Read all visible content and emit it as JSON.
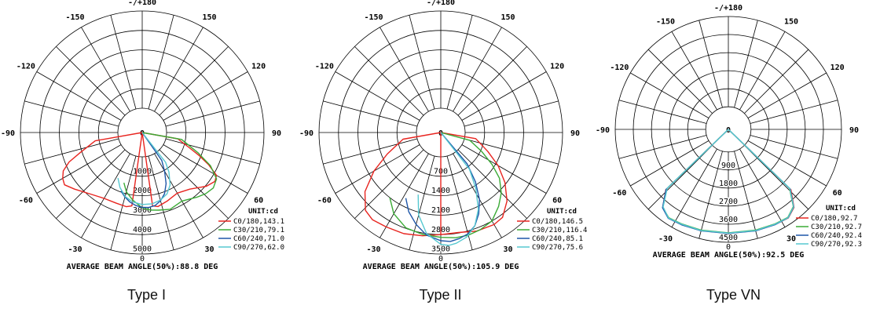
{
  "chart_data": [
    {
      "type": "polar-line",
      "caption": "Type I",
      "angle_labels": [
        {
          "angle": 180,
          "text": "-/+180"
        },
        {
          "angle": -150,
          "text": "-150"
        },
        {
          "angle": 150,
          "text": "150"
        },
        {
          "angle": -120,
          "text": "-120"
        },
        {
          "angle": 120,
          "text": "120"
        },
        {
          "angle": -90,
          "text": "-90"
        },
        {
          "angle": 90,
          "text": "90"
        },
        {
          "angle": -60,
          "text": "-60"
        },
        {
          "angle": 60,
          "text": "60"
        },
        {
          "angle": -30,
          "text": "-30"
        },
        {
          "angle": 30,
          "text": "30"
        },
        {
          "angle": 0,
          "text": "0"
        }
      ],
      "radial_ticks": [
        "0",
        "1000",
        "2000",
        "3000",
        "4000",
        "5000"
      ],
      "r_max": 5000,
      "inner_circle_fraction": 0.2,
      "unit_label": "UNIT:cd",
      "beam_angle_text": "AVERAGE BEAM ANGLE(50%):88.8 DEG",
      "series": [
        {
          "name": "C0/180,143.1",
          "color": "#e8241f",
          "points": [
            [
              0,
              0
            ],
            [
              -8,
              2560
            ],
            [
              -12,
              2650
            ],
            [
              -20,
              2620
            ],
            [
              -30,
              2660
            ],
            [
              -40,
              2880
            ],
            [
              -50,
              3280
            ],
            [
              -56,
              3560
            ],
            [
              -60,
              3460
            ],
            [
              -64,
              3260
            ],
            [
              -68,
              2800
            ],
            [
              -72,
              2100
            ],
            [
              -80,
              1200
            ],
            [
              -90,
              0
            ],
            [
              0,
              0
            ],
            [
              8,
              2560
            ],
            [
              12,
              2640
            ],
            [
              20,
              2500
            ],
            [
              30,
              2350
            ],
            [
              40,
              2550
            ],
            [
              50,
              3050
            ],
            [
              56,
              3250
            ],
            [
              60,
              3150
            ],
            [
              64,
              2550
            ],
            [
              68,
              1900
            ],
            [
              72,
              1300
            ],
            [
              80,
              600
            ],
            [
              90,
              0
            ]
          ]
        },
        {
          "name": "C30/210,79.1",
          "color": "#3aaa35",
          "points": [
            [
              -20,
              1500
            ],
            [
              -15,
              1900
            ],
            [
              -8,
              2260
            ],
            [
              0,
              2620
            ],
            [
              6,
              2760
            ],
            [
              12,
              2830
            ],
            [
              20,
              2950
            ],
            [
              30,
              2820
            ],
            [
              40,
              3100
            ],
            [
              46,
              3280
            ],
            [
              52,
              3380
            ],
            [
              58,
              3250
            ],
            [
              64,
              2650
            ],
            [
              70,
              1800
            ],
            [
              80,
              800
            ],
            [
              90,
              0
            ]
          ]
        },
        {
          "name": "C60/240,71.0",
          "color": "#1e56a8",
          "points": [
            [
              -20,
              1950
            ],
            [
              -15,
              2180
            ],
            [
              -10,
              2380
            ],
            [
              -5,
              2520
            ],
            [
              0,
              2600
            ],
            [
              5,
              2620
            ],
            [
              10,
              2560
            ],
            [
              15,
              2380
            ],
            [
              20,
              2100
            ],
            [
              25,
              1650
            ],
            [
              30,
              1050
            ],
            [
              35,
              500
            ],
            [
              40,
              0
            ]
          ]
        },
        {
          "name": "C90/270,62.0",
          "color": "#56c8d0",
          "points": [
            [
              -28,
              1400
            ],
            [
              -22,
              1800
            ],
            [
              -15,
              2150
            ],
            [
              -8,
              2350
            ],
            [
              0,
              2450
            ],
            [
              8,
              2450
            ],
            [
              15,
              2350
            ],
            [
              22,
              2150
            ],
            [
              28,
              1800
            ],
            [
              34,
              1200
            ],
            [
              38,
              700
            ],
            [
              42,
              0
            ]
          ]
        }
      ]
    },
    {
      "type": "polar-line",
      "caption": "Type II",
      "angle_labels": [
        {
          "angle": 180,
          "text": "-/+180"
        },
        {
          "angle": -150,
          "text": "-150"
        },
        {
          "angle": 150,
          "text": "150"
        },
        {
          "angle": -120,
          "text": "-120"
        },
        {
          "angle": 120,
          "text": "120"
        },
        {
          "angle": -90,
          "text": "-90"
        },
        {
          "angle": 90,
          "text": "90"
        },
        {
          "angle": -60,
          "text": "-60"
        },
        {
          "angle": 60,
          "text": "60"
        },
        {
          "angle": -30,
          "text": "-30"
        },
        {
          "angle": 30,
          "text": "30"
        },
        {
          "angle": 0,
          "text": "0"
        }
      ],
      "radial_ticks": [
        "0",
        "700",
        "1400",
        "2100",
        "2800",
        "3500"
      ],
      "r_max": 3500,
      "inner_circle_fraction": 0.2,
      "unit_label": "UNIT:cd",
      "beam_angle_text": "AVERAGE BEAM ANGLE(50%):105.9 DEG",
      "series": [
        {
          "name": "C0/180,146.5",
          "color": "#e8241f",
          "points": [
            [
              0,
              2800
            ],
            [
              -10,
              2900
            ],
            [
              -20,
              3000
            ],
            [
              -30,
              3050
            ],
            [
              -38,
              3110
            ],
            [
              -44,
              3020
            ],
            [
              -52,
              2580
            ],
            [
              -60,
              1900
            ],
            [
              -68,
              1200
            ],
            [
              -80,
              500
            ],
            [
              -90,
              0
            ],
            [
              0,
              2800
            ],
            [
              10,
              2780
            ],
            [
              20,
              2900
            ],
            [
              30,
              2950
            ],
            [
              36,
              2900
            ],
            [
              44,
              2550
            ],
            [
              52,
              2050
            ],
            [
              60,
              1500
            ],
            [
              68,
              950
            ],
            [
              80,
              400
            ],
            [
              90,
              0
            ]
          ]
        },
        {
          "name": "C30/210,116.4",
          "color": "#3aaa35",
          "points": [
            [
              -38,
              2100
            ],
            [
              -30,
              2500
            ],
            [
              -20,
              2780
            ],
            [
              -10,
              2850
            ],
            [
              0,
              2900
            ],
            [
              8,
              2950
            ],
            [
              15,
              2950
            ],
            [
              22,
              2900
            ],
            [
              30,
              2800
            ],
            [
              38,
              2500
            ],
            [
              45,
              2200
            ],
            [
              52,
              1800
            ],
            [
              58,
              1300
            ],
            [
              65,
              750
            ],
            [
              75,
              200
            ],
            [
              85,
              0
            ]
          ]
        },
        {
          "name": "C60/240,85.1",
          "color": "#1e56a8",
          "points": [
            [
              -28,
              1800
            ],
            [
              -22,
              2200
            ],
            [
              -15,
              2550
            ],
            [
              -8,
              2850
            ],
            [
              0,
              3020
            ],
            [
              5,
              3060
            ],
            [
              10,
              3000
            ],
            [
              15,
              2900
            ],
            [
              20,
              2700
            ],
            [
              25,
              2350
            ],
            [
              30,
              1900
            ],
            [
              35,
              1300
            ],
            [
              40,
              600
            ],
            [
              45,
              0
            ]
          ]
        },
        {
          "name": "C90/270,75.6",
          "color": "#56c8d0",
          "points": [
            [
              -20,
              1500
            ],
            [
              -15,
              2200
            ],
            [
              -8,
              2800
            ],
            [
              0,
              3150
            ],
            [
              4,
              3200
            ],
            [
              8,
              3150
            ],
            [
              14,
              3000
            ],
            [
              20,
              2700
            ],
            [
              26,
              2200
            ],
            [
              32,
              1500
            ],
            [
              38,
              800
            ],
            [
              42,
              0
            ]
          ]
        }
      ]
    },
    {
      "type": "polar-line",
      "caption": "Type VN",
      "angle_labels": [
        {
          "angle": 180,
          "text": "-/+180"
        },
        {
          "angle": -150,
          "text": "-150"
        },
        {
          "angle": 150,
          "text": "150"
        },
        {
          "angle": -120,
          "text": "-120"
        },
        {
          "angle": 120,
          "text": "120"
        },
        {
          "angle": -90,
          "text": "-90"
        },
        {
          "angle": 90,
          "text": "90"
        },
        {
          "angle": -60,
          "text": "-60"
        },
        {
          "angle": 60,
          "text": "60"
        },
        {
          "angle": -30,
          "text": "-30"
        },
        {
          "angle": 30,
          "text": "30"
        },
        {
          "angle": 0,
          "text": "0"
        }
      ],
      "radial_ticks": [
        "0",
        "900",
        "1800",
        "2700",
        "3600",
        "4500"
      ],
      "r_max": 4500,
      "inner_circle_fraction": 0.2,
      "unit_label": "UNIT:cd",
      "beam_angle_text": "AVERAGE BEAM ANGLE(50%):92.5 DEG",
      "series": [
        {
          "name": "C0/180,92.7",
          "color": "#e8241f",
          "points": [
            [
              -50,
              0
            ],
            [
              -46,
              3200
            ],
            [
              -40,
              3950
            ],
            [
              -34,
              4200
            ],
            [
              -26,
              4150
            ],
            [
              -15,
              4100
            ],
            [
              0,
              4050
            ],
            [
              15,
              4100
            ],
            [
              26,
              4150
            ],
            [
              34,
              4200
            ],
            [
              40,
              3950
            ],
            [
              46,
              3200
            ],
            [
              50,
              0
            ]
          ]
        },
        {
          "name": "C30/210,92.7",
          "color": "#3aaa35",
          "points": [
            [
              -50,
              0
            ],
            [
              -46,
              3150
            ],
            [
              -40,
              3950
            ],
            [
              -34,
              4180
            ],
            [
              -26,
              4120
            ],
            [
              -15,
              4070
            ],
            [
              0,
              4030
            ],
            [
              15,
              4070
            ],
            [
              26,
              4120
            ],
            [
              34,
              4160
            ],
            [
              40,
              3900
            ],
            [
              46,
              3100
            ],
            [
              50,
              0
            ]
          ]
        },
        {
          "name": "C60/240,92.4",
          "color": "#1e56a8",
          "points": [
            [
              -50,
              0
            ],
            [
              -46,
              3180
            ],
            [
              -40,
              3970
            ],
            [
              -34,
              4220
            ],
            [
              -26,
              4170
            ],
            [
              -15,
              4110
            ],
            [
              0,
              4060
            ],
            [
              15,
              4110
            ],
            [
              26,
              4160
            ],
            [
              34,
              4190
            ],
            [
              40,
              3930
            ],
            [
              46,
              3150
            ],
            [
              50,
              0
            ]
          ]
        },
        {
          "name": "C90/270,92.3",
          "color": "#56c8d0",
          "points": [
            [
              -50,
              0
            ],
            [
              -46,
              3100
            ],
            [
              -40,
              3920
            ],
            [
              -34,
              4200
            ],
            [
              -26,
              4140
            ],
            [
              -15,
              4090
            ],
            [
              0,
              4040
            ],
            [
              15,
              4090
            ],
            [
              26,
              4140
            ],
            [
              34,
              4180
            ],
            [
              40,
              3920
            ],
            [
              46,
              3120
            ],
            [
              50,
              0
            ]
          ]
        }
      ]
    }
  ]
}
